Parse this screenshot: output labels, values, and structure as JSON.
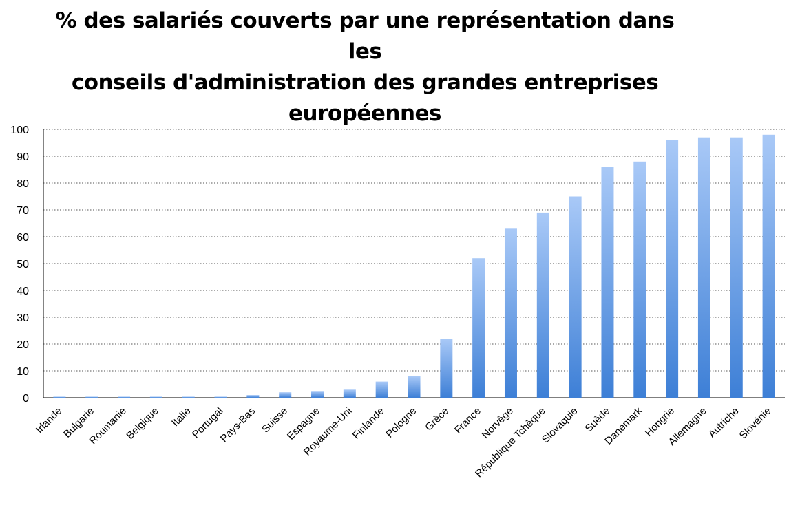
{
  "chart_data": {
    "type": "bar",
    "title": "% des salariés couverts par une représentation dans les conseils d'administration des grandes entreprises européennes",
    "title_lines": [
      "% des salariés couverts par une représentation dans les",
      "conseils d'administration des grandes entreprises",
      "européennes"
    ],
    "xlabel": "",
    "ylabel": "",
    "ylim": [
      0,
      100
    ],
    "yticks": [
      "0",
      "10",
      "20",
      "30",
      "40",
      "50",
      "60",
      "70",
      "80",
      "90",
      "100"
    ],
    "grid": true,
    "legend": "none",
    "bar_color_top": "#a9c9f7",
    "bar_color_bottom": "#3d7fd6",
    "categories": [
      "Irlande",
      "Bulgarie",
      "Roumanie",
      "Belgique",
      "Italie",
      "Portugal",
      "Pays-Bas",
      "Suisse",
      "Espagne",
      "Royaume-Uni",
      "Finlande",
      "Pologne",
      "Grèce",
      "France",
      "Norvège",
      "République Tchèque",
      "Slovaquie",
      "Suède",
      "Danemark",
      "Hongrie",
      "Allemagne",
      "Autriche",
      "Slovénie"
    ],
    "values": [
      0,
      0,
      0,
      0,
      0,
      0,
      1,
      2,
      2.5,
      3,
      6,
      8,
      22,
      52,
      63,
      69,
      75,
      86,
      88,
      96,
      97,
      97,
      98
    ]
  }
}
